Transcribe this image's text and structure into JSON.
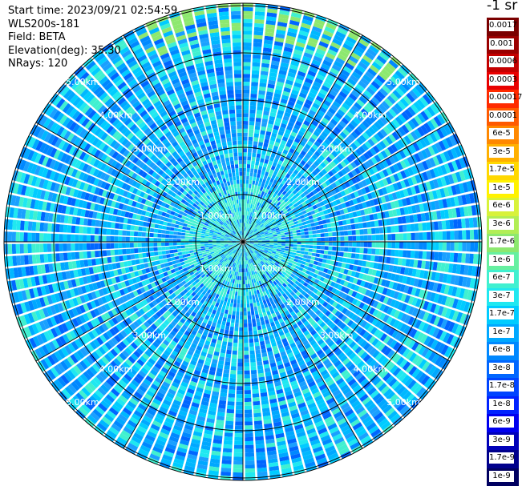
{
  "info": {
    "start_time": "Start time: 2023/09/21 02:54:59",
    "instrument": "WLS200s-181",
    "field": "Field: BETA",
    "elevation": "Elevation(deg): 35.30",
    "nrays": "NRays: 120"
  },
  "unit_label": "-1 sr",
  "range_rings": [
    "1.00km",
    "2.00km",
    "3.00km",
    "4.00km",
    "5.00km"
  ],
  "colorbar": [
    {
      "label": "0.0017",
      "color": "#7a0000"
    },
    {
      "label": "0.001",
      "color": "#9a0000"
    },
    {
      "label": "0.0006",
      "color": "#c40000"
    },
    {
      "label": "0.0003",
      "color": "#e80000"
    },
    {
      "label": "0.00017",
      "color": "#ff2a00"
    },
    {
      "label": "0.0001",
      "color": "#ff5a00"
    },
    {
      "label": "6e-5",
      "color": "#ff8800"
    },
    {
      "label": "3e-5",
      "color": "#ffb000"
    },
    {
      "label": "1.7e-5",
      "color": "#ffd800"
    },
    {
      "label": "1e-5",
      "color": "#fff200"
    },
    {
      "label": "6e-6",
      "color": "#d8f23a"
    },
    {
      "label": "3e-6",
      "color": "#b2ee55"
    },
    {
      "label": "1.7e-6",
      "color": "#8de86f"
    },
    {
      "label": "1e-6",
      "color": "#66f0a0"
    },
    {
      "label": "6e-7",
      "color": "#40f0d0"
    },
    {
      "label": "3e-7",
      "color": "#20e8f0"
    },
    {
      "label": "1.7e-7",
      "color": "#00ccff"
    },
    {
      "label": "1e-7",
      "color": "#00a8ff"
    },
    {
      "label": "6e-8",
      "color": "#0088ff"
    },
    {
      "label": "3e-8",
      "color": "#0066ff"
    },
    {
      "label": "1.7e-8",
      "color": "#0044ff"
    },
    {
      "label": "1e-8",
      "color": "#0022ff"
    },
    {
      "label": "6e-9",
      "color": "#0000ee"
    },
    {
      "label": "3e-9",
      "color": "#0000b8"
    },
    {
      "label": "1.7e-9",
      "color": "#00008c"
    },
    {
      "label": "1e-9",
      "color": "#000060"
    }
  ]
}
